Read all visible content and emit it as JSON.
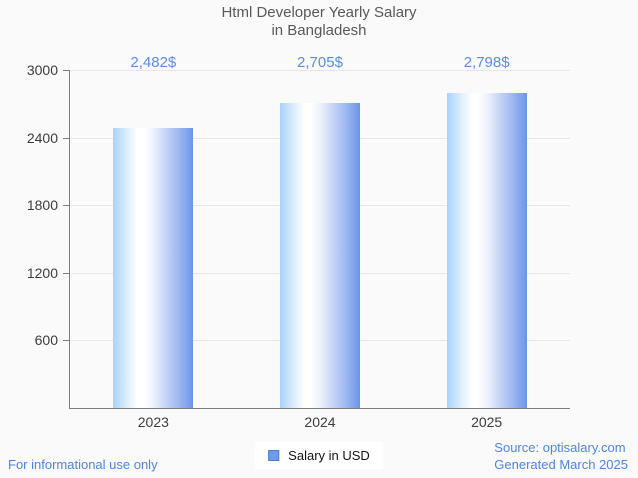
{
  "title": {
    "line1": "Html Developer Yearly Salary",
    "line2": "in Bangladesh"
  },
  "chart_data": {
    "type": "bar",
    "title": "Html Developer Yearly Salary in Bangladesh",
    "categories": [
      "2023",
      "2024",
      "2025"
    ],
    "series": [
      {
        "name": "Salary in USD",
        "values": [
          2482,
          2705,
          2798
        ]
      }
    ],
    "value_labels": [
      "2,482$",
      "2,705$",
      "2,798$"
    ],
    "xlabel": "",
    "ylabel": "",
    "ylim": [
      0,
      3000
    ],
    "yticks": [
      600,
      1200,
      1800,
      2400,
      3000
    ],
    "grid": true,
    "legend_position": "bottom-center"
  },
  "legend": {
    "label": "Salary in USD"
  },
  "footer": {
    "left": "For informational use only",
    "source": "Source: optisalary.com",
    "generated": "Generated March 2025"
  },
  "colors": {
    "bg": "#fafafa",
    "title": "#58595b",
    "axis": "#7d7d7d",
    "grid": "#e7e7e7",
    "tick_label": "#3d3d3d",
    "value_label": "#5b8ce4",
    "footer": "#4f84e4",
    "bar_left": "#a8d2f9",
    "bar_right": "#6b95ea",
    "legend_fill": "#6d9be9",
    "legend_border": "#4c7ecf",
    "legend_bg": "#ffffff"
  }
}
